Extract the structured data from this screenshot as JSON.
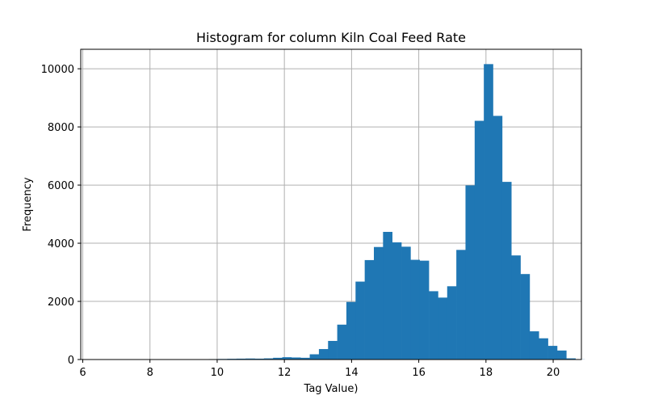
{
  "chart_data": {
    "type": "bar",
    "title": "Histogram for column Kiln Coal Feed Rate",
    "xlabel": "Tag Value)",
    "ylabel": "Frequency",
    "xlim": [
      5.94,
      20.84
    ],
    "ylim": [
      0,
      10670
    ],
    "grid": true,
    "bar_color": "#1f77b4",
    "bin_start": 6.21,
    "bin_width": 0.2727,
    "values": [
      5,
      0,
      0,
      0,
      0,
      0,
      0,
      0,
      0,
      0,
      0,
      2,
      10,
      15,
      20,
      25,
      30,
      35,
      30,
      40,
      60,
      80,
      70,
      60,
      180,
      360,
      640,
      1200,
      1980,
      2680,
      3420,
      3870,
      4390,
      4030,
      3880,
      3430,
      3400,
      2350,
      2130,
      2520,
      3770,
      5990,
      8210,
      10160,
      8380,
      6110,
      3580,
      2940,
      970,
      730,
      470,
      310,
      40,
      5
    ],
    "xticks": [
      6,
      8,
      10,
      12,
      14,
      16,
      18,
      20
    ],
    "xtick_labels": [
      "6",
      "8",
      "10",
      "12",
      "14",
      "16",
      "18",
      "20"
    ],
    "yticks": [
      0,
      2000,
      4000,
      6000,
      8000,
      10000
    ],
    "ytick_labels": [
      "0",
      "2000",
      "4000",
      "6000",
      "8000",
      "10000"
    ]
  }
}
